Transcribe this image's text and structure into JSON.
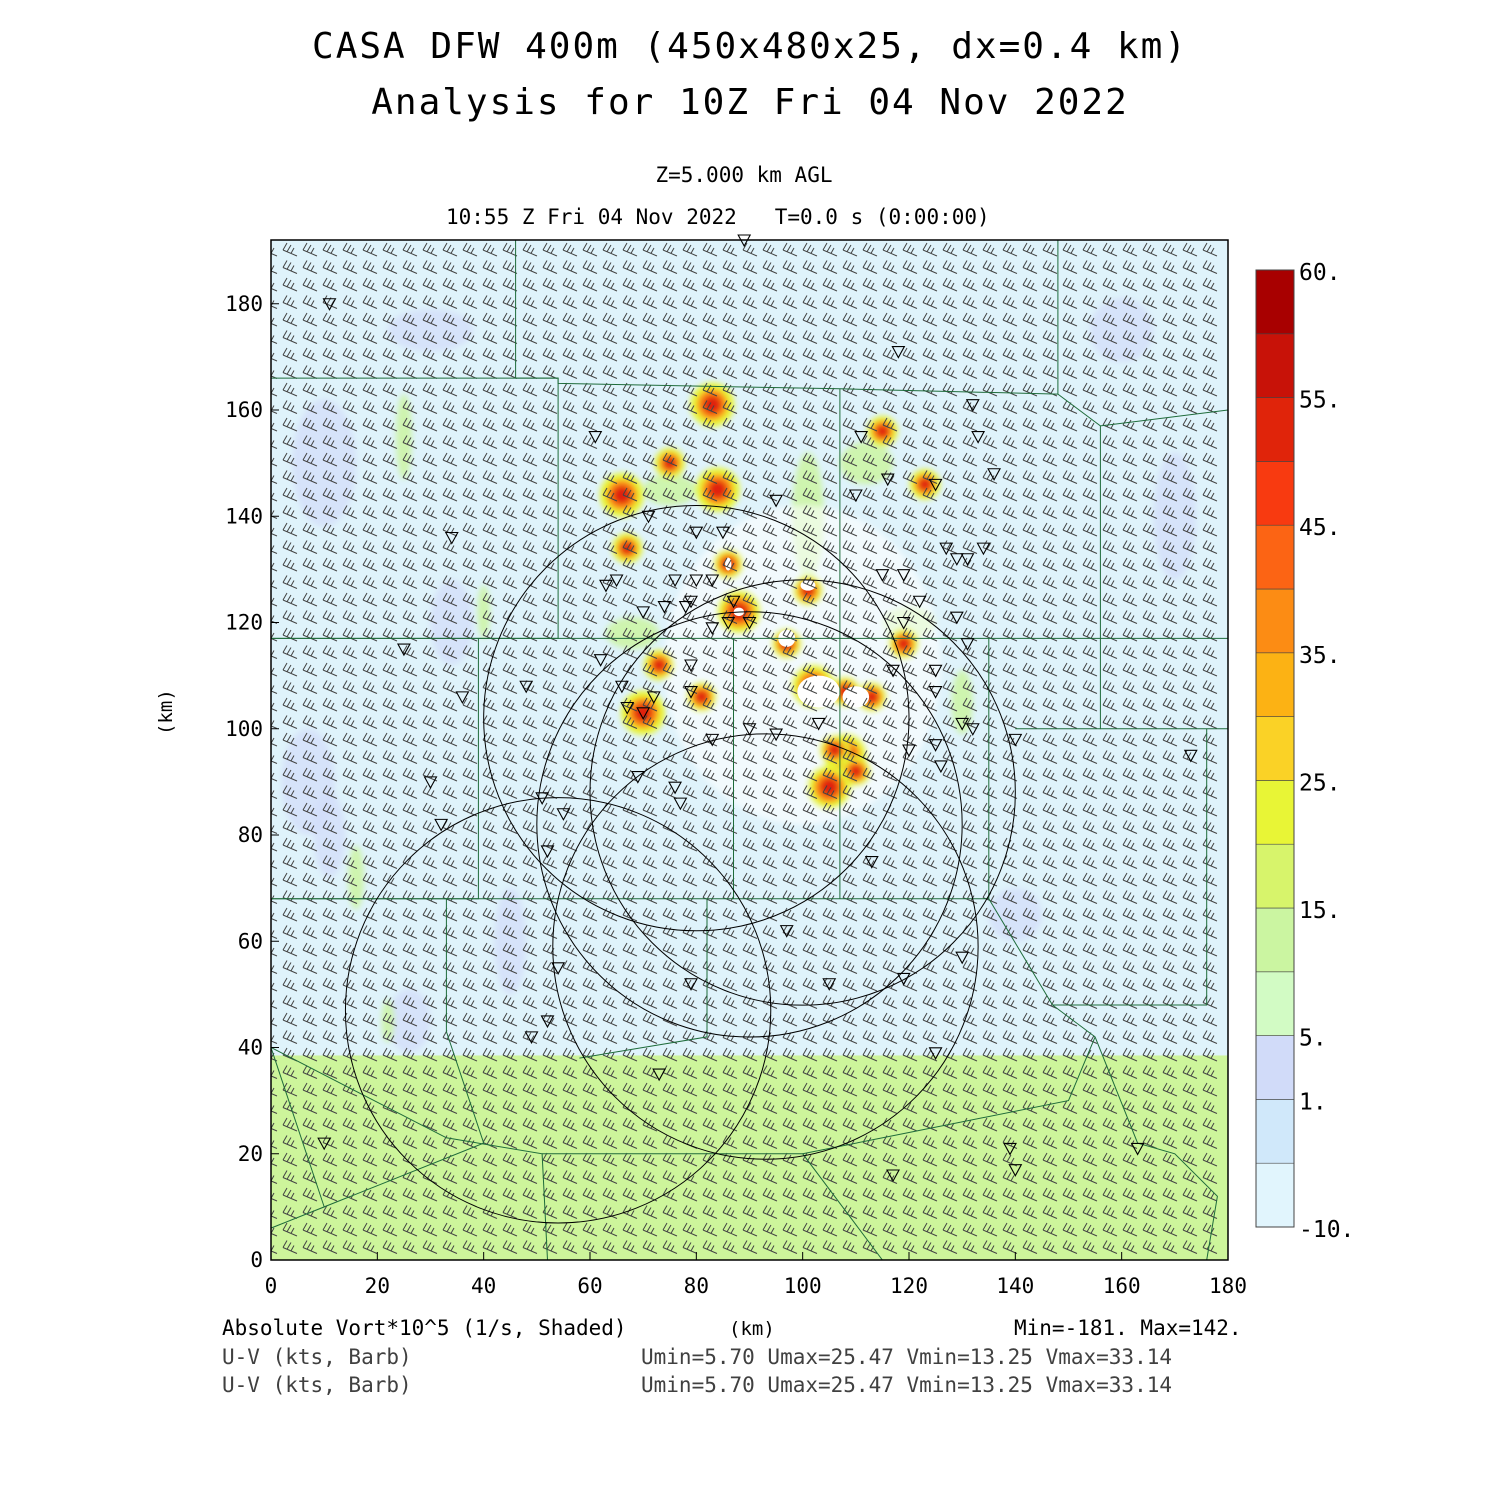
{
  "header": {
    "title_line1": "CASA DFW 400m (450x480x25, dx=0.4 km)",
    "title_line2": "Analysis for 10Z Fri 04 Nov 2022",
    "level": "Z=5.000 km AGL",
    "valid_time": "10:55 Z Fri 04 Nov 2022",
    "forecast_time": "T=0.0 s (0:00:00)"
  },
  "footer": {
    "field_label": "Absolute Vort*10^5 (1/s, Shaded)",
    "x_unit": "(km)",
    "minmax": "Min=-181. Max=142.",
    "barb_label_1": "U-V (kts, Barb)",
    "barb_stats_1": "Umin=5.70 Umax=25.47 Vmin=13.25 Vmax=33.14",
    "barb_label_2": "U-V (kts, Barb)",
    "barb_stats_2": "Umin=5.70 Umax=25.47 Vmin=13.25 Vmax=33.14"
  },
  "colors": {
    "background_low": "#dff3fb",
    "southern_band": "#cdf59b",
    "county_lines": "#1e6b3a"
  },
  "chart_data": {
    "type": "heatmap",
    "title": "Absolute Vort*10^5 (1/s, Shaded)",
    "xlabel": "(km)",
    "ylabel": "(km)",
    "xlim": [
      0,
      180
    ],
    "ylim": [
      0,
      192
    ],
    "xticks": [
      0,
      20,
      40,
      60,
      80,
      100,
      120,
      140,
      160,
      180
    ],
    "yticks": [
      0,
      20,
      40,
      60,
      80,
      100,
      120,
      140,
      160,
      180
    ],
    "colorbar": {
      "levels": [
        -10,
        -5,
        1,
        5,
        10,
        15,
        20,
        25,
        30,
        35,
        40,
        45,
        50,
        55,
        60
      ],
      "tick_labels": [
        "-10.",
        "1.",
        "5.",
        "15.",
        "25.",
        "35.",
        "45.",
        "55.",
        "60."
      ],
      "tick_values": [
        -10,
        1,
        5,
        15,
        25,
        35,
        45,
        55,
        60
      ],
      "colors": [
        "#e1f5fd",
        "#d0e8fa",
        "#d1dbf9",
        "#d2fbc4",
        "#cbf5a1",
        "#d7f46b",
        "#e8f536",
        "#fad226",
        "#fcb214",
        "#fc8c14",
        "#fc6414",
        "#f83a10",
        "#e0240a",
        "#c81208",
        "#a80000"
      ]
    },
    "range_rings_center_km": [
      [
        80,
        102
      ],
      [
        90,
        82
      ],
      [
        100,
        88
      ],
      [
        54,
        47
      ],
      [
        93,
        59
      ]
    ],
    "radar_site_markers_km": [
      [
        89,
        192
      ],
      [
        11,
        180
      ],
      [
        118,
        171
      ],
      [
        132,
        161
      ],
      [
        61,
        155
      ],
      [
        111,
        155
      ],
      [
        133,
        155
      ],
      [
        125,
        146
      ],
      [
        71,
        140
      ],
      [
        80,
        137
      ],
      [
        85,
        137
      ],
      [
        95,
        143
      ],
      [
        110,
        144
      ],
      [
        116,
        147
      ],
      [
        136,
        148
      ],
      [
        34,
        136
      ],
      [
        127,
        134
      ],
      [
        129,
        132
      ],
      [
        131,
        132
      ],
      [
        134,
        134
      ],
      [
        63,
        127
      ],
      [
        65,
        128
      ],
      [
        76,
        128
      ],
      [
        80,
        128
      ],
      [
        83,
        128
      ],
      [
        115,
        129
      ],
      [
        119,
        129
      ],
      [
        87,
        124
      ],
      [
        90,
        120
      ],
      [
        86,
        120
      ],
      [
        83,
        119
      ],
      [
        70,
        122
      ],
      [
        74,
        123
      ],
      [
        78,
        123
      ],
      [
        79,
        124
      ],
      [
        119,
        120
      ],
      [
        122,
        124
      ],
      [
        129,
        121
      ],
      [
        131,
        116
      ],
      [
        25,
        115
      ],
      [
        62,
        113
      ],
      [
        79,
        112
      ],
      [
        117,
        111
      ],
      [
        125,
        111
      ],
      [
        125,
        107
      ],
      [
        36,
        106
      ],
      [
        48,
        108
      ],
      [
        66,
        108
      ],
      [
        70,
        103
      ],
      [
        67,
        104
      ],
      [
        72,
        106
      ],
      [
        79,
        107
      ],
      [
        83,
        98
      ],
      [
        90,
        100
      ],
      [
        95,
        99
      ],
      [
        103,
        101
      ],
      [
        120,
        96
      ],
      [
        125,
        97
      ],
      [
        126,
        93
      ],
      [
        130,
        101
      ],
      [
        132,
        100
      ],
      [
        140,
        98
      ],
      [
        173,
        95
      ],
      [
        30,
        90
      ],
      [
        51,
        87
      ],
      [
        55,
        84
      ],
      [
        52,
        77
      ],
      [
        69,
        91
      ],
      [
        76,
        89
      ],
      [
        77,
        86
      ],
      [
        32,
        82
      ],
      [
        113,
        75
      ],
      [
        97,
        62
      ],
      [
        54,
        55
      ],
      [
        79,
        52
      ],
      [
        105,
        52
      ],
      [
        119,
        53
      ],
      [
        130,
        57
      ],
      [
        52,
        45
      ],
      [
        49,
        42
      ],
      [
        125,
        39
      ],
      [
        73,
        35
      ],
      [
        10,
        22
      ],
      [
        139,
        21
      ],
      [
        140,
        17
      ],
      [
        117,
        16
      ],
      [
        163,
        21
      ]
    ],
    "hotspots_km": [
      [
        84,
        145
      ],
      [
        75,
        150
      ],
      [
        86,
        131
      ],
      [
        88,
        122
      ],
      [
        97,
        116
      ],
      [
        101,
        126
      ],
      [
        102,
        108
      ],
      [
        108,
        107
      ],
      [
        113,
        106
      ],
      [
        108,
        95
      ],
      [
        110,
        92
      ],
      [
        106,
        96
      ],
      [
        70,
        103
      ],
      [
        81,
        106
      ],
      [
        73,
        112
      ],
      [
        83,
        161
      ],
      [
        115,
        156
      ],
      [
        123,
        146
      ],
      [
        66,
        144
      ],
      [
        67,
        134
      ],
      [
        119,
        116
      ],
      [
        105,
        89
      ]
    ],
    "wind_barbs": {
      "direction": "southwesterly",
      "u_range_kts": [
        5.7,
        25.47
      ],
      "v_range_kts": [
        13.25,
        33.14
      ]
    }
  }
}
